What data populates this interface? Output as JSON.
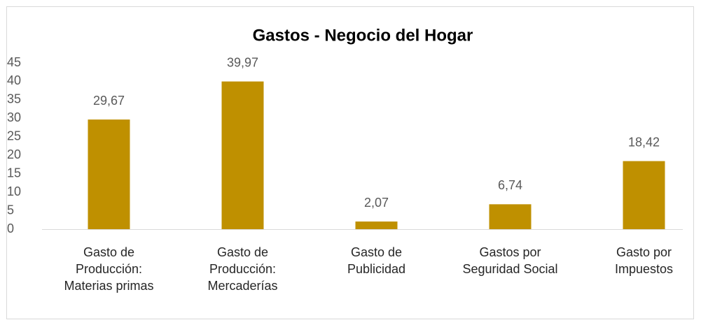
{
  "chart_data": {
    "type": "bar",
    "title": "Gastos - Negocio del Hogar",
    "categories": [
      "Gasto de\nProducción:\nMaterias primas",
      "Gasto de\nProducción:\nMercaderías",
      "Gasto de\nPublicidad",
      "Gastos por\nSeguridad Social",
      "Gasto por\nImpuestos"
    ],
    "values": [
      29.67,
      39.97,
      2.07,
      6.74,
      18.42
    ],
    "value_labels": [
      "29,67",
      "39,97",
      "2,07",
      "6,74",
      "18,42"
    ],
    "color": "#bf9000",
    "ylim": [
      0,
      45
    ],
    "yticks": [
      0,
      5,
      10,
      15,
      20,
      25,
      30,
      35,
      40,
      45
    ],
    "grid": false
  }
}
